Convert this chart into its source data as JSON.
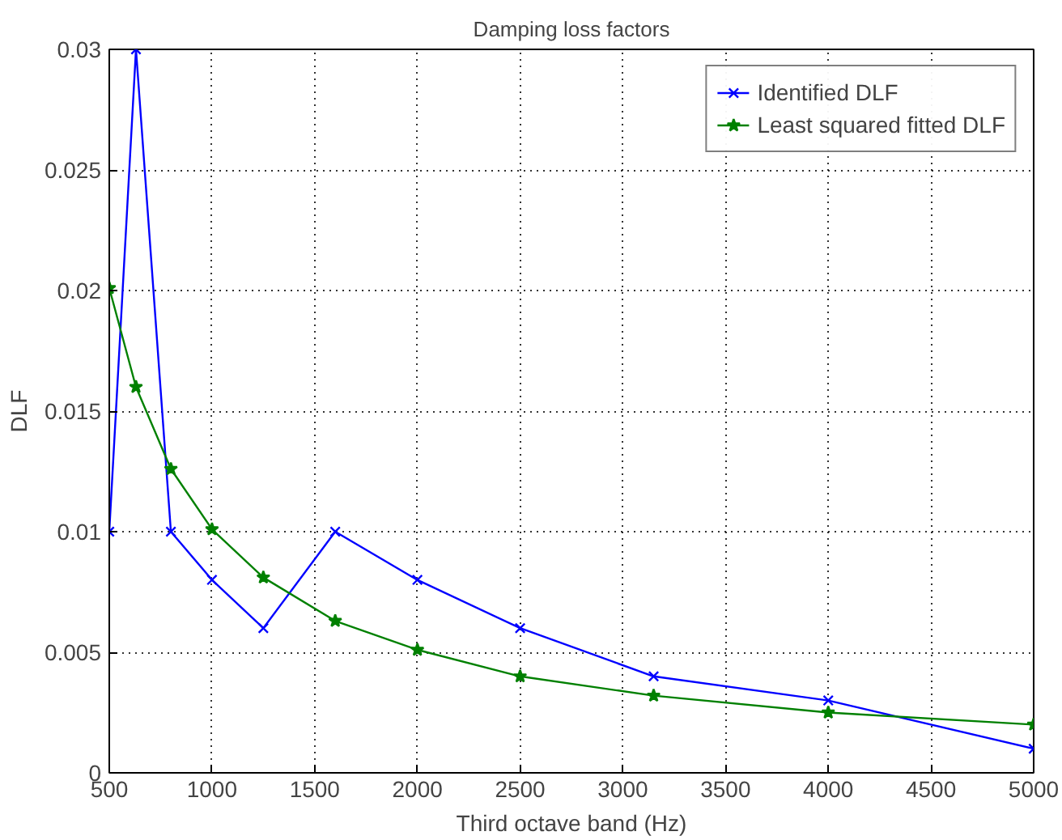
{
  "chart_data": {
    "type": "line",
    "title": "Damping loss factors",
    "xlabel": "Third octave band (Hz)",
    "ylabel": "DLF",
    "x": [
      500,
      630,
      800,
      1000,
      1250,
      1600,
      2000,
      2500,
      3150,
      4000,
      5000
    ],
    "series": [
      {
        "name": "Identified DLF",
        "color": "#0000ff",
        "marker": "cross",
        "values": [
          0.01,
          0.03,
          0.01,
          0.008,
          0.006,
          0.01,
          0.008,
          0.006,
          0.004,
          0.003,
          0.001
        ]
      },
      {
        "name": "Least squared fitted DLF",
        "color": "#008000",
        "marker": "star",
        "values": [
          0.0201,
          0.016,
          0.0126,
          0.0101,
          0.0081,
          0.0063,
          0.0051,
          0.004,
          0.0032,
          0.0025,
          0.002
        ]
      }
    ],
    "xlim": [
      500,
      5000
    ],
    "xticks": [
      500,
      1000,
      1500,
      2000,
      2500,
      3000,
      3500,
      4000,
      4500,
      5000
    ],
    "ylim": [
      0,
      0.03
    ],
    "yticks": [
      0,
      0.005,
      0.01,
      0.015,
      0.02,
      0.025,
      0.03
    ],
    "grid": true,
    "legend": "top right",
    "line_style": "solid"
  }
}
